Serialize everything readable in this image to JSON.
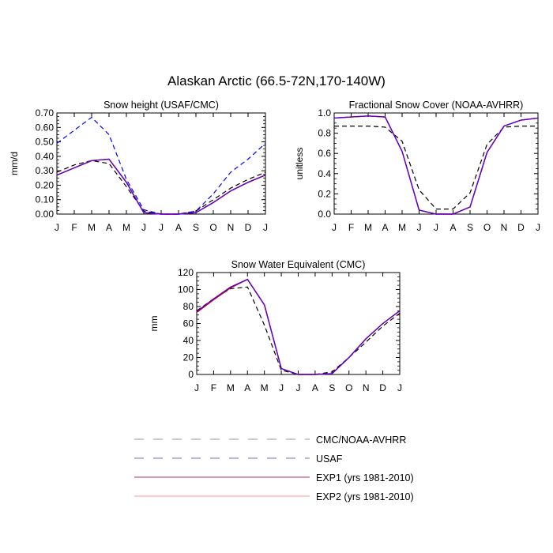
{
  "title": "Alaskan Arctic (66.5-72N,170-140W)",
  "months": [
    "J",
    "F",
    "M",
    "A",
    "M",
    "J",
    "J",
    "A",
    "S",
    "O",
    "N",
    "D",
    "J"
  ],
  "colors": {
    "cmc": "#000000",
    "usaf": "#0000ff",
    "exp1": "#cc0000",
    "exp2": "#ff0000",
    "blended": "#5a00cc"
  },
  "legend": [
    {
      "label": "CMC/NOAA-AVHRR",
      "style": "dashed",
      "color": "#999999"
    },
    {
      "label": "USAF",
      "style": "dashed",
      "color": "#7777cc"
    },
    {
      "label": "EXP1 (yrs 1981-2010)",
      "style": "solid",
      "color": "#b03060"
    },
    {
      "label": "EXP2 (yrs 1981-2010)",
      "style": "solid",
      "color": "#ff9999"
    }
  ],
  "chart_data": [
    {
      "type": "line",
      "title": "Snow height (USAF/CMC)",
      "ylabel": "mm/d",
      "xlabel": "",
      "ylim": [
        0,
        0.7
      ],
      "yticks": [
        "0.00",
        "0.10",
        "0.20",
        "0.30",
        "0.40",
        "0.50",
        "0.60",
        "0.70"
      ],
      "x": [
        "J",
        "F",
        "M",
        "A",
        "M",
        "J",
        "J",
        "A",
        "S",
        "O",
        "N",
        "D",
        "J"
      ],
      "series": [
        {
          "name": "CMC/NOAA-AVHRR",
          "style": "dashed",
          "color": "#000000",
          "values": [
            0.29,
            0.34,
            0.37,
            0.35,
            0.19,
            0.02,
            0.0,
            0.0,
            0.02,
            0.1,
            0.18,
            0.24,
            0.29
          ]
        },
        {
          "name": "USAF",
          "style": "dashed",
          "color": "#0000ff",
          "values": [
            0.49,
            0.58,
            0.67,
            0.55,
            0.24,
            0.03,
            0.0,
            0.0,
            0.02,
            0.14,
            0.29,
            0.38,
            0.49
          ]
        },
        {
          "name": "EXP1 (yrs 1981-2010)",
          "style": "solid",
          "color": "#cc0000",
          "values": [
            0.27,
            0.32,
            0.37,
            0.38,
            0.22,
            0.01,
            0.0,
            0.0,
            0.01,
            0.08,
            0.16,
            0.22,
            0.27
          ]
        },
        {
          "name": "EXP2 (yrs 1981-2010)",
          "style": "solid",
          "color": "#3300ff",
          "values": [
            0.27,
            0.32,
            0.37,
            0.38,
            0.22,
            0.01,
            0.0,
            0.0,
            0.01,
            0.08,
            0.16,
            0.22,
            0.27
          ]
        }
      ]
    },
    {
      "type": "line",
      "title": "Fractional Snow Cover (NOAA-AVHRR)",
      "ylabel": "unitless",
      "xlabel": "",
      "ylim": [
        0,
        1.0
      ],
      "yticks": [
        "0.0",
        "0.2",
        "0.4",
        "0.6",
        "0.8",
        "1.0"
      ],
      "x": [
        "J",
        "F",
        "M",
        "A",
        "M",
        "J",
        "J",
        "A",
        "S",
        "O",
        "N",
        "D",
        "J"
      ],
      "series": [
        {
          "name": "CMC/NOAA-AVHRR",
          "style": "dashed",
          "color": "#000000",
          "values": [
            0.87,
            0.87,
            0.87,
            0.86,
            0.72,
            0.24,
            0.05,
            0.05,
            0.21,
            0.69,
            0.86,
            0.87,
            0.87
          ]
        },
        {
          "name": "EXP1 (yrs 1981-2010)",
          "style": "solid",
          "color": "#cc0000",
          "values": [
            0.95,
            0.96,
            0.97,
            0.96,
            0.62,
            0.04,
            0.0,
            0.0,
            0.07,
            0.61,
            0.87,
            0.93,
            0.95
          ]
        },
        {
          "name": "EXP2 (yrs 1981-2010)",
          "style": "solid",
          "color": "#3300ff",
          "values": [
            0.95,
            0.96,
            0.97,
            0.96,
            0.62,
            0.04,
            0.0,
            0.0,
            0.07,
            0.61,
            0.87,
            0.93,
            0.95
          ]
        }
      ]
    },
    {
      "type": "line",
      "title": "Snow Water Equivalent (CMC)",
      "ylabel": "mm",
      "xlabel": "",
      "ylim": [
        0,
        120
      ],
      "yticks": [
        "0",
        "20",
        "40",
        "60",
        "80",
        "100",
        "120"
      ],
      "x": [
        "J",
        "F",
        "M",
        "A",
        "M",
        "J",
        "J",
        "A",
        "S",
        "O",
        "N",
        "D",
        "J"
      ],
      "series": [
        {
          "name": "CMC/NOAA-AVHRR",
          "style": "dashed",
          "color": "#000000",
          "values": [
            75,
            89,
            101,
            103,
            58,
            5,
            0,
            0,
            3,
            20,
            38,
            57,
            72
          ]
        },
        {
          "name": "EXP1 (yrs 1981-2010)",
          "style": "solid",
          "color": "#cc0000",
          "values": [
            73,
            88,
            102,
            112,
            82,
            7,
            0,
            0,
            1,
            20,
            42,
            60,
            75
          ]
        },
        {
          "name": "EXP2 (yrs 1981-2010)",
          "style": "solid",
          "color": "#3300ff",
          "values": [
            74,
            89,
            103,
            112,
            82,
            7,
            0,
            0,
            1,
            20,
            42,
            60,
            75
          ]
        }
      ]
    }
  ]
}
